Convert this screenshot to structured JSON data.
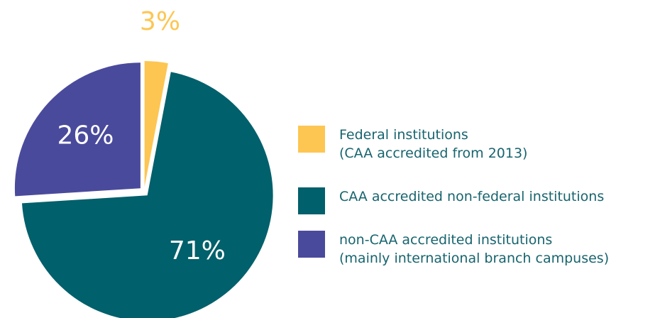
{
  "chart_data": {
    "type": "pie",
    "categories": [
      "Federal institutions\n(CAA accredited from 2013)",
      "CAA accredited non-federal institutions",
      "non-CAA accredited institutions\n(mainly international branch campuses)"
    ],
    "values": [
      3,
      71,
      26
    ],
    "value_labels": [
      "3%",
      "71%",
      "26%"
    ],
    "colors": [
      "#fdc652",
      "#00606b",
      "#4a4a9c"
    ],
    "legend": "right"
  }
}
